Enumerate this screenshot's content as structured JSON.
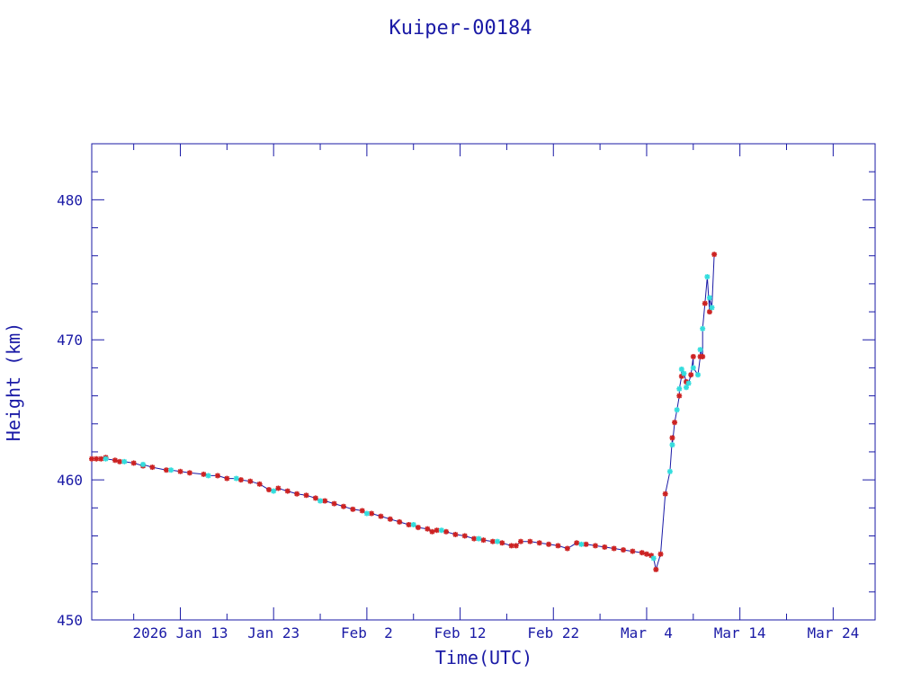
{
  "chart_data": {
    "type": "scatter",
    "title": "Kuiper-00184",
    "xlabel": "Time(UTC)",
    "ylabel": "Height (km)",
    "x_range_days_labels": [
      "2026 Jan 13",
      "Jan 23",
      "Feb  2",
      "Feb 12",
      "Feb 22",
      "Mar  4",
      "Mar 14",
      "Mar 24"
    ],
    "x_ticks": [
      {
        "date": "2026-01-13",
        "label": "2026 Jan 13"
      },
      {
        "date": "2026-01-23",
        "label": "Jan 23"
      },
      {
        "date": "2026-02-02",
        "label": "Feb  2"
      },
      {
        "date": "2026-02-12",
        "label": "Feb 12"
      },
      {
        "date": "2026-02-22",
        "label": "Feb 22"
      },
      {
        "date": "2026-03-04",
        "label": "Mar  4"
      },
      {
        "date": "2026-03-14",
        "label": "Mar 14"
      },
      {
        "date": "2026-03-24",
        "label": "Mar 24"
      }
    ],
    "xlim": [
      "2026-01-03T12:00",
      "2026-03-28T12:00"
    ],
    "y_ticks": [
      450,
      460,
      470,
      480
    ],
    "ylim": [
      450,
      484
    ],
    "grid": false,
    "colors": {
      "axis": "#1a1aa6",
      "line": "#1a1aa6",
      "series_a": "#cc2222",
      "series_b": "#33dddd"
    },
    "series": [
      {
        "color": "#cc2222",
        "points": [
          [
            "2026-01-03T12:00",
            461.5
          ],
          [
            "2026-01-04T00:00",
            461.5
          ],
          [
            "2026-01-04T12:00",
            461.5
          ],
          [
            "2026-01-05T00:00",
            461.6
          ],
          [
            "2026-01-06T00:00",
            461.4
          ],
          [
            "2026-01-06T12:00",
            461.3
          ],
          [
            "2026-01-08T00:00",
            461.2
          ],
          [
            "2026-01-09T00:00",
            461.0
          ],
          [
            "2026-01-10T00:00",
            460.9
          ],
          [
            "2026-01-11T12:00",
            460.7
          ],
          [
            "2026-01-13T00:00",
            460.6
          ],
          [
            "2026-01-14T00:00",
            460.5
          ],
          [
            "2026-01-15T12:00",
            460.4
          ],
          [
            "2026-01-17T00:00",
            460.3
          ],
          [
            "2026-01-18T00:00",
            460.1
          ],
          [
            "2026-01-19T12:00",
            460.0
          ],
          [
            "2026-01-20T12:00",
            459.9
          ],
          [
            "2026-01-21T12:00",
            459.7
          ],
          [
            "2026-01-22T12:00",
            459.3
          ],
          [
            "2026-01-23T12:00",
            459.4
          ],
          [
            "2026-01-24T12:00",
            459.2
          ],
          [
            "2026-01-25T12:00",
            459.0
          ],
          [
            "2026-01-26T12:00",
            458.9
          ],
          [
            "2026-01-27T12:00",
            458.7
          ],
          [
            "2026-01-28T12:00",
            458.5
          ],
          [
            "2026-01-29T12:00",
            458.3
          ],
          [
            "2026-01-30T12:00",
            458.1
          ],
          [
            "2026-01-31T12:00",
            457.9
          ],
          [
            "2026-02-01T12:00",
            457.8
          ],
          [
            "2026-02-02T12:00",
            457.6
          ],
          [
            "2026-02-03T12:00",
            457.4
          ],
          [
            "2026-02-04T12:00",
            457.2
          ],
          [
            "2026-02-05T12:00",
            457.0
          ],
          [
            "2026-02-06T12:00",
            456.8
          ],
          [
            "2026-02-07T12:00",
            456.6
          ],
          [
            "2026-02-08T12:00",
            456.5
          ],
          [
            "2026-02-09T00:00",
            456.3
          ],
          [
            "2026-02-09T12:00",
            456.4
          ],
          [
            "2026-02-10T12:00",
            456.3
          ],
          [
            "2026-02-11T12:00",
            456.1
          ],
          [
            "2026-02-12T12:00",
            456.0
          ],
          [
            "2026-02-13T12:00",
            455.8
          ],
          [
            "2026-02-14T12:00",
            455.7
          ],
          [
            "2026-02-15T12:00",
            455.6
          ],
          [
            "2026-02-16T12:00",
            455.5
          ],
          [
            "2026-02-17T12:00",
            455.3
          ],
          [
            "2026-02-18T00:00",
            455.3
          ],
          [
            "2026-02-18T12:00",
            455.6
          ],
          [
            "2026-02-19T12:00",
            455.6
          ],
          [
            "2026-02-20T12:00",
            455.5
          ],
          [
            "2026-02-21T12:00",
            455.4
          ],
          [
            "2026-02-22T12:00",
            455.3
          ],
          [
            "2026-02-23T12:00",
            455.1
          ],
          [
            "2026-02-24T12:00",
            455.5
          ],
          [
            "2026-02-25T12:00",
            455.4
          ],
          [
            "2026-02-26T12:00",
            455.3
          ],
          [
            "2026-02-27T12:00",
            455.2
          ],
          [
            "2026-02-28T12:00",
            455.1
          ],
          [
            "2026-03-01T12:00",
            455.0
          ],
          [
            "2026-03-02T12:00",
            454.9
          ],
          [
            "2026-03-03T12:00",
            454.8
          ],
          [
            "2026-03-04T00:00",
            454.7
          ],
          [
            "2026-03-04T12:00",
            454.6
          ],
          [
            "2026-03-05T00:00",
            453.6
          ],
          [
            "2026-03-05T12:00",
            454.7
          ],
          [
            "2026-03-06T00:00",
            459.0
          ],
          [
            "2026-03-06T18:00",
            463.0
          ],
          [
            "2026-03-07T00:00",
            464.1
          ],
          [
            "2026-03-07T12:00",
            466.0
          ],
          [
            "2026-03-07T18:00",
            467.4
          ],
          [
            "2026-03-08T06:00",
            467.0
          ],
          [
            "2026-03-08T18:00",
            467.5
          ],
          [
            "2026-03-09T00:00",
            468.8
          ],
          [
            "2026-03-09T18:00",
            468.8
          ],
          [
            "2026-03-10T00:00",
            468.8
          ],
          [
            "2026-03-10T06:00",
            472.6
          ],
          [
            "2026-03-10T18:00",
            472.0
          ],
          [
            "2026-03-11T06:00",
            476.1
          ]
        ]
      },
      {
        "color": "#33dddd",
        "points": [
          [
            "2026-01-05T00:00",
            461.5
          ],
          [
            "2026-01-07T00:00",
            461.3
          ],
          [
            "2026-01-09T00:00",
            461.1
          ],
          [
            "2026-01-12T00:00",
            460.7
          ],
          [
            "2026-01-16T00:00",
            460.3
          ],
          [
            "2026-01-19T00:00",
            460.1
          ],
          [
            "2026-01-23T00:00",
            459.2
          ],
          [
            "2026-01-28T00:00",
            458.5
          ],
          [
            "2026-02-02T00:00",
            457.6
          ],
          [
            "2026-02-07T00:00",
            456.8
          ],
          [
            "2026-02-10T00:00",
            456.4
          ],
          [
            "2026-02-14T00:00",
            455.8
          ],
          [
            "2026-02-16T00:00",
            455.6
          ],
          [
            "2026-02-25T00:00",
            455.4
          ],
          [
            "2026-03-04T18:00",
            454.4
          ],
          [
            "2026-03-06T12:00",
            460.6
          ],
          [
            "2026-03-06T18:00",
            462.5
          ],
          [
            "2026-03-07T06:00",
            465.0
          ],
          [
            "2026-03-07T12:00",
            466.5
          ],
          [
            "2026-03-07T18:00",
            467.9
          ],
          [
            "2026-03-08T00:00",
            467.6
          ],
          [
            "2026-03-08T06:00",
            466.6
          ],
          [
            "2026-03-08T12:00",
            466.9
          ],
          [
            "2026-03-09T00:00",
            468.0
          ],
          [
            "2026-03-09T12:00",
            467.5
          ],
          [
            "2026-03-09T18:00",
            469.3
          ],
          [
            "2026-03-10T00:00",
            470.8
          ],
          [
            "2026-03-10T12:00",
            474.5
          ],
          [
            "2026-03-10T18:00",
            473.0
          ],
          [
            "2026-03-11T00:00",
            472.3
          ]
        ]
      }
    ]
  }
}
